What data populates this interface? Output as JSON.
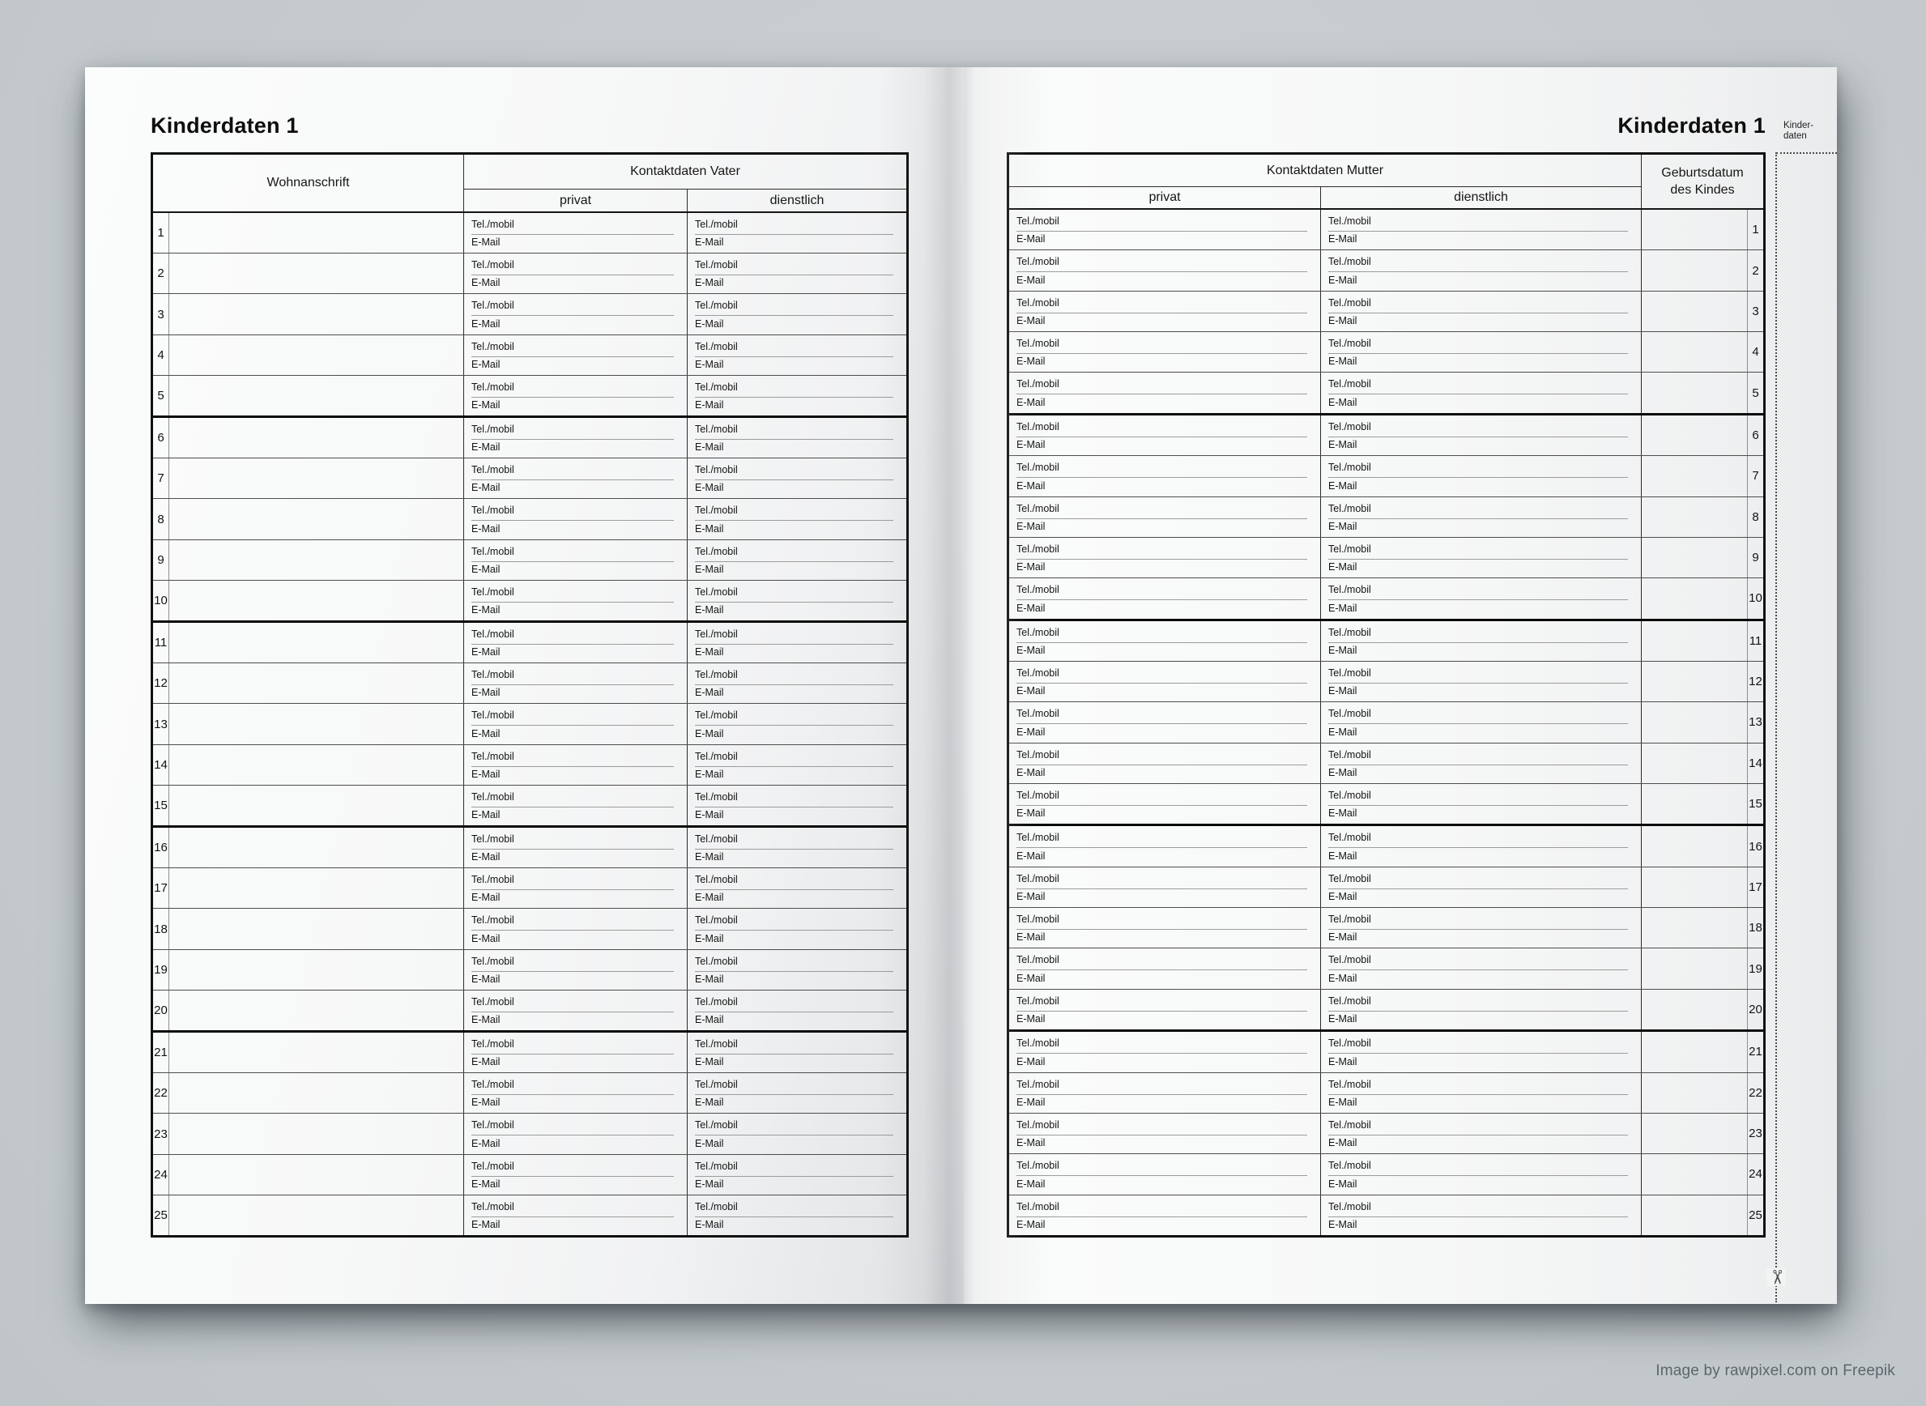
{
  "labels": {
    "tel": "Tel./mobil",
    "email": "E-Mail"
  },
  "left_page": {
    "title": "Kinderdaten 1",
    "table": {
      "header": {
        "address": "Wohnanschrift",
        "contact_group": "Kontaktdaten Vater",
        "private": "privat",
        "business": "dienstlich"
      },
      "rows": [
        "1",
        "2",
        "3",
        "4",
        "5",
        "6",
        "7",
        "8",
        "9",
        "10",
        "11",
        "12",
        "13",
        "14",
        "15",
        "16",
        "17",
        "18",
        "19",
        "20",
        "21",
        "22",
        "23",
        "24",
        "25"
      ]
    }
  },
  "right_page": {
    "title": "Kinderdaten 1",
    "tab": {
      "label": "Kinder-\ndaten"
    },
    "table": {
      "header": {
        "contact_group": "Kontaktdaten Mutter",
        "private": "privat",
        "business": "dienstlich",
        "birthdate_line1": "Geburtsdatum",
        "birthdate_line2": "des Kindes"
      },
      "rows": [
        "1",
        "2",
        "3",
        "4",
        "5",
        "6",
        "7",
        "8",
        "9",
        "10",
        "11",
        "12",
        "13",
        "14",
        "15",
        "16",
        "17",
        "18",
        "19",
        "20",
        "21",
        "22",
        "23",
        "24",
        "25"
      ]
    }
  },
  "cut_mark": {
    "scissors": "✂"
  },
  "attribution": "Image by rawpixel.com on Freepik"
}
